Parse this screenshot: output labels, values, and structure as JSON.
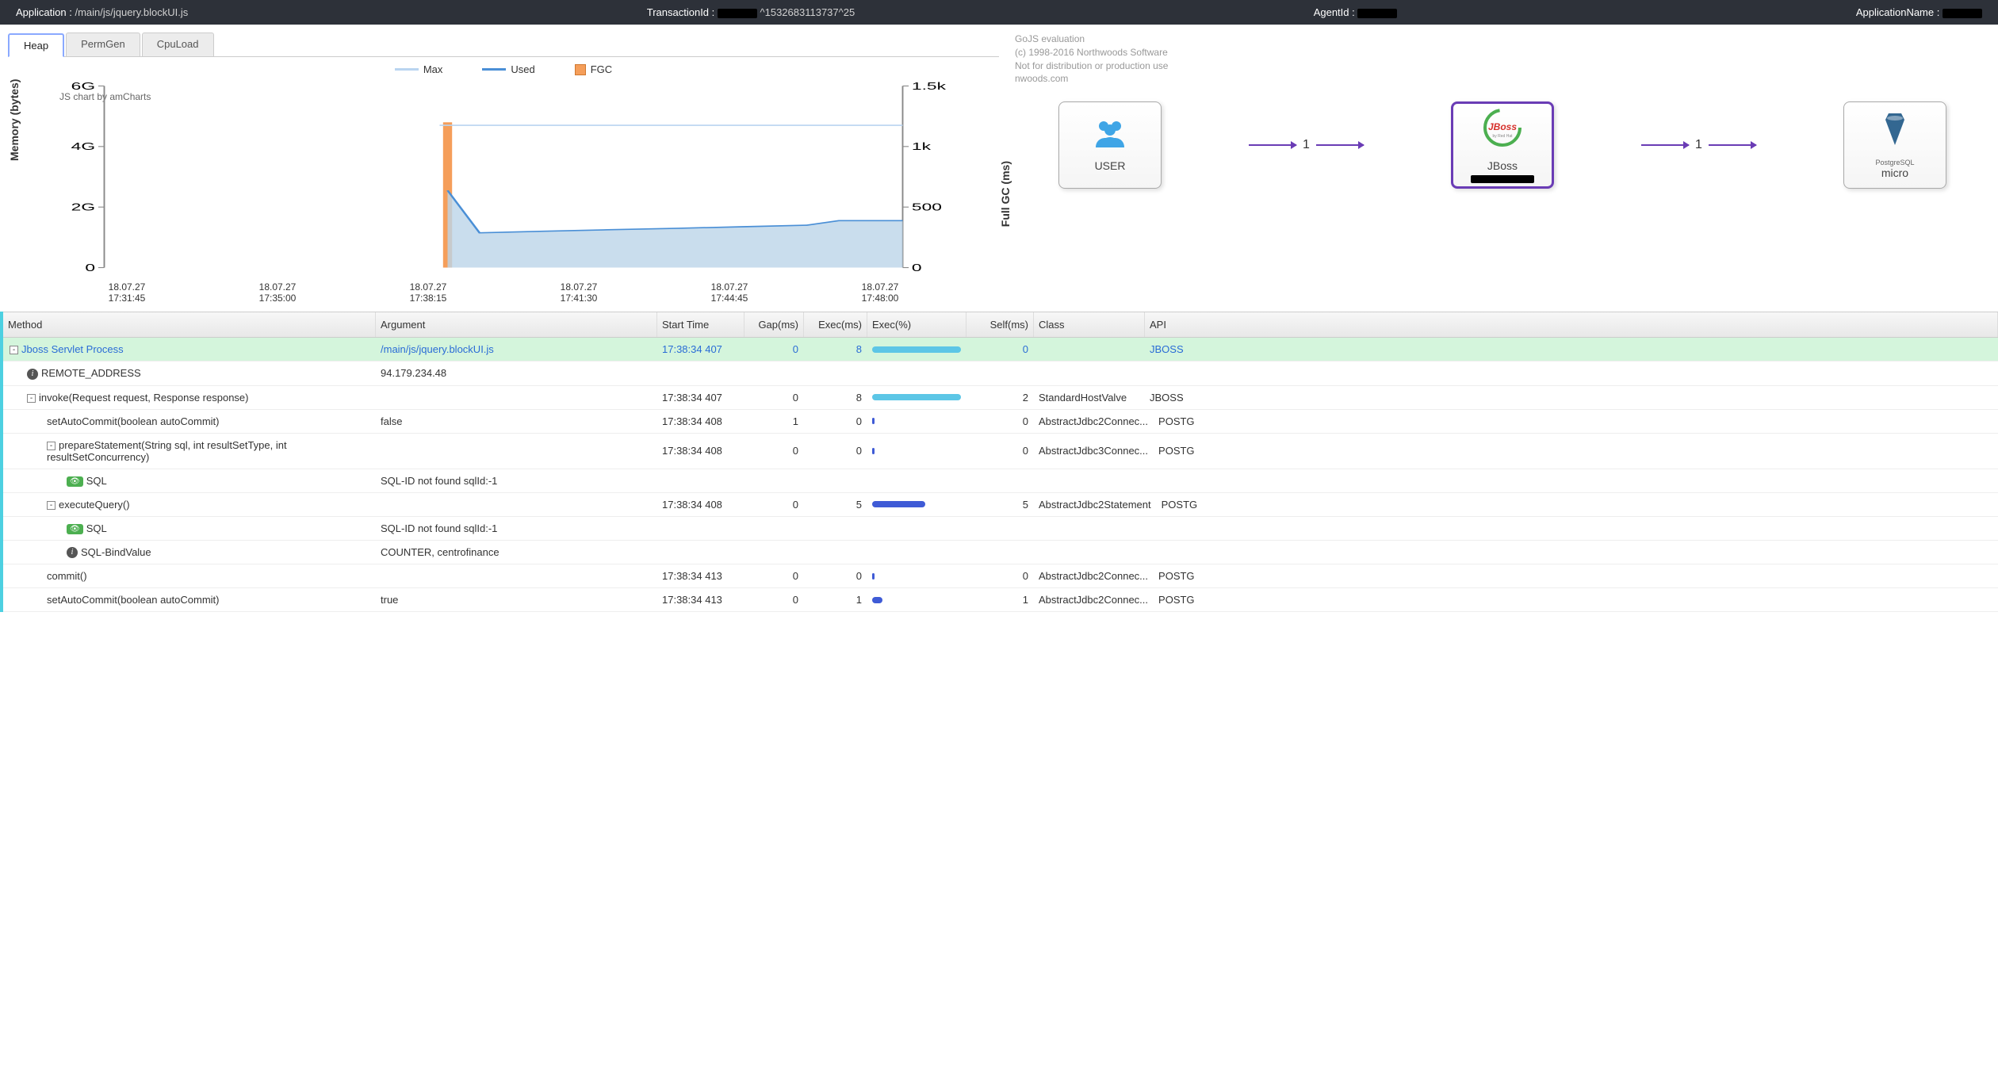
{
  "topbar": {
    "app_label": "Application :",
    "app_value": "/main/js/jquery.blockUI.js",
    "txn_label": "TransactionId :",
    "txn_value": "^1532683113737^25",
    "agent_label": "AgentId :",
    "appname_label": "ApplicationName :"
  },
  "tabs": {
    "heap": "Heap",
    "permgen": "PermGen",
    "cpu": "CpuLoad"
  },
  "chart": {
    "legend": {
      "max": "Max",
      "used": "Used",
      "fgc": "FGC"
    },
    "credit": "JS chart by amCharts",
    "ylabel": "Memory (bytes)",
    "y2label": "Full GC (ms)",
    "yticks": [
      "6G",
      "4G",
      "2G",
      "0"
    ],
    "y2ticks": [
      "1.5k",
      "1k",
      "500",
      "0"
    ],
    "xticks": [
      {
        "d": "18.07.27",
        "t": "17:31:45"
      },
      {
        "d": "18.07.27",
        "t": "17:35:00"
      },
      {
        "d": "18.07.27",
        "t": "17:38:15"
      },
      {
        "d": "18.07.27",
        "t": "17:41:30"
      },
      {
        "d": "18.07.27",
        "t": "17:44:45"
      },
      {
        "d": "18.07.27",
        "t": "17:48:00"
      }
    ],
    "colors": {
      "max": "#b9d4f0",
      "used_line": "#4a8fd6",
      "used_fill": "#bcd5e8",
      "fgc": "#f59e5a",
      "grid": "#e5e5e5"
    },
    "ylim": [
      0,
      6
    ],
    "y2lim": [
      0,
      1.5
    ],
    "max_value": 4.7,
    "max_start_x": 0.42,
    "fgc_bar": {
      "x": 0.43,
      "value": 1.2
    },
    "used_points": [
      {
        "x": 0.43,
        "y": 2.55
      },
      {
        "x": 0.47,
        "y": 1.15
      },
      {
        "x": 0.55,
        "y": 1.2
      },
      {
        "x": 0.63,
        "y": 1.25
      },
      {
        "x": 0.72,
        "y": 1.3
      },
      {
        "x": 0.8,
        "y": 1.35
      },
      {
        "x": 0.88,
        "y": 1.4
      },
      {
        "x": 0.92,
        "y": 1.55
      },
      {
        "x": 1.0,
        "y": 1.55
      }
    ]
  },
  "gojs": {
    "l1": "GoJS evaluation",
    "l2": "(c) 1998-2016 Northwoods Software",
    "l3": "Not for distribution or production use",
    "l4": "nwoods.com"
  },
  "flow": {
    "nodes": [
      {
        "key": "user",
        "label": "USER",
        "color": "#3fa5e6"
      },
      {
        "key": "jboss",
        "label": "JBoss",
        "color": "#d6302b"
      },
      {
        "key": "pg",
        "label": "micro",
        "sub": "PostgreSQL",
        "color": "#336791"
      }
    ],
    "edges": [
      {
        "label": "1"
      },
      {
        "label": "1"
      }
    ]
  },
  "grid": {
    "headers": {
      "method": "Method",
      "arg": "Argument",
      "start": "Start Time",
      "gap": "Gap(ms)",
      "exec": "Exec(ms)",
      "execpct": "Exec(%)",
      "self": "Self(ms)",
      "class": "Class",
      "api": "API"
    },
    "max_exec": 8,
    "bar_colors": {
      "light": "#5cc6e6",
      "dark": "#3f5bd6"
    },
    "rows": [
      {
        "hl": true,
        "indent": 0,
        "toggle": "-",
        "link": true,
        "method": "Jboss Servlet Process",
        "arg": "/main/js/jquery.blockUI.js",
        "start": "17:38:34 407",
        "gap": "0",
        "exec": "8",
        "pct": 100,
        "barcolor": "light",
        "self": "0",
        "class": "",
        "api": "JBOSS"
      },
      {
        "indent": 1,
        "icon": "info",
        "method": "REMOTE_ADDRESS",
        "arg": "94.179.234.48"
      },
      {
        "indent": 1,
        "toggle": "-",
        "method": "invoke(Request request, Response response)",
        "start": "17:38:34 407",
        "gap": "0",
        "exec": "8",
        "pct": 100,
        "barcolor": "light",
        "self": "2",
        "class": "StandardHostValve",
        "api": "JBOSS"
      },
      {
        "indent": 2,
        "method": "setAutoCommit(boolean autoCommit)",
        "arg": "false",
        "start": "17:38:34 408",
        "gap": "1",
        "exec": "0",
        "pct": 2,
        "barcolor": "dark",
        "self": "0",
        "class": "AbstractJdbc2Connec...",
        "api": "POSTG"
      },
      {
        "indent": 2,
        "toggle": "-",
        "method": "prepareStatement(String sql, int resultSetType, int resultSetConcurrency)",
        "start": "17:38:34 408",
        "gap": "0",
        "exec": "0",
        "pct": 2,
        "barcolor": "dark",
        "self": "0",
        "class": "AbstractJdbc3Connec...",
        "api": "POSTG"
      },
      {
        "indent": 3,
        "icon": "sql",
        "method": "SQL",
        "arg": "SQL-ID not found sqlId:-1"
      },
      {
        "indent": 2,
        "toggle": "-",
        "method": "executeQuery()",
        "start": "17:38:34 408",
        "gap": "0",
        "exec": "5",
        "pct": 60,
        "barcolor": "dark",
        "self": "5",
        "class": "AbstractJdbc2Statement",
        "api": "POSTG"
      },
      {
        "indent": 3,
        "icon": "sql",
        "method": "SQL",
        "arg": "SQL-ID not found sqlId:-1"
      },
      {
        "indent": 3,
        "icon": "info",
        "method": "SQL-BindValue",
        "arg": "COUNTER, centrofinance"
      },
      {
        "indent": 2,
        "method": "commit()",
        "start": "17:38:34 413",
        "gap": "0",
        "exec": "0",
        "pct": 2,
        "barcolor": "dark",
        "self": "0",
        "class": "AbstractJdbc2Connec...",
        "api": "POSTG"
      },
      {
        "indent": 2,
        "method": "setAutoCommit(boolean autoCommit)",
        "arg": "true",
        "start": "17:38:34 413",
        "gap": "0",
        "exec": "1",
        "pct": 12,
        "barcolor": "dark",
        "self": "1",
        "class": "AbstractJdbc2Connec...",
        "api": "POSTG"
      }
    ]
  }
}
